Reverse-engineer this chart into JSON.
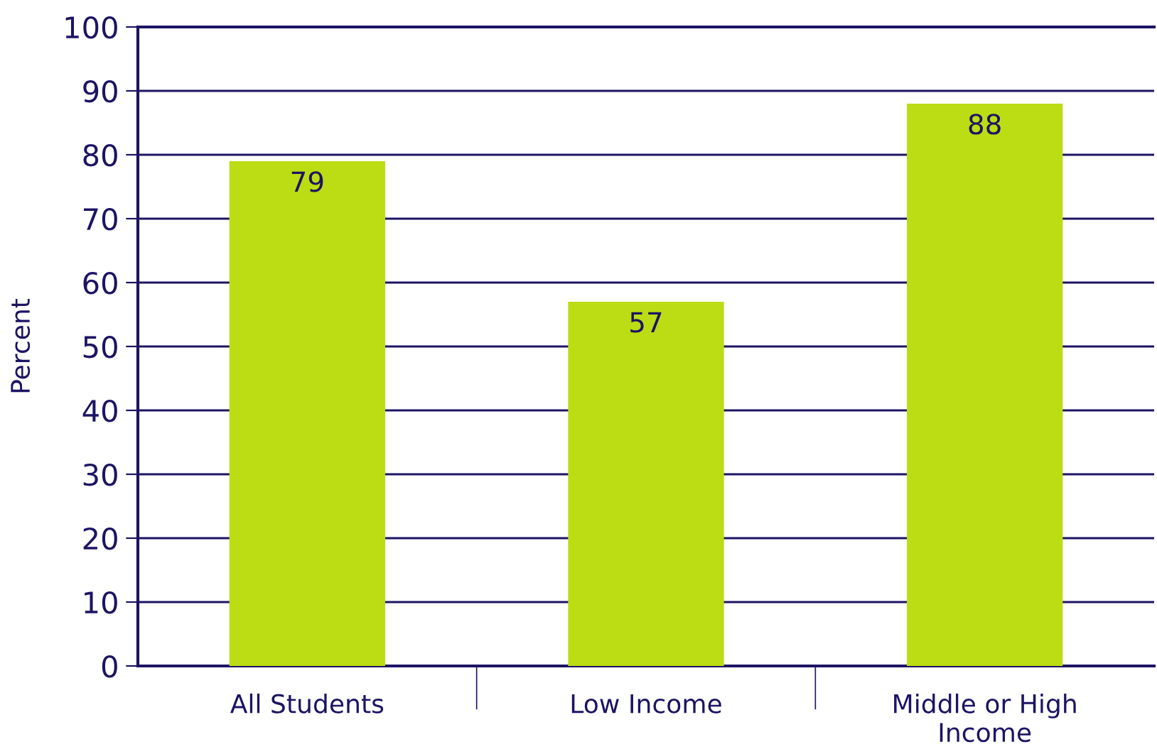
{
  "chart_data": {
    "type": "bar",
    "ylabel": "Percent",
    "categories": [
      "All Students",
      "Low Income",
      "Middle or High\nIncome"
    ],
    "values": [
      79,
      57,
      88
    ],
    "color": "#bcdc14",
    "ylim": [
      0,
      100
    ],
    "yticks": [
      0,
      10,
      20,
      30,
      40,
      50,
      60,
      70,
      80,
      90,
      100
    ],
    "grid": "y",
    "data_labels": true
  }
}
